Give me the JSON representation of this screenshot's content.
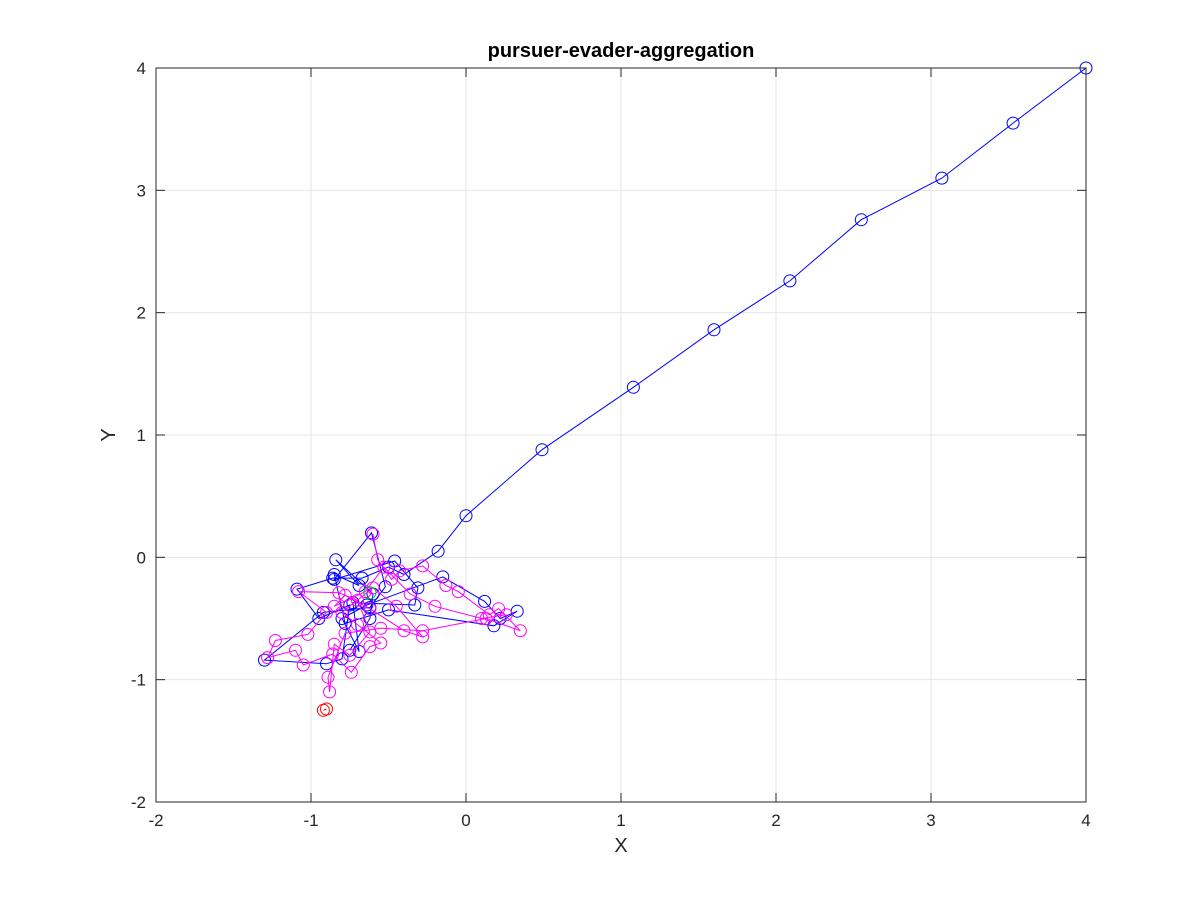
{
  "chart_data": {
    "type": "line",
    "title": "pursuer-evader-aggregation",
    "xlabel": "X",
    "ylabel": "Y",
    "xlim": [
      -2,
      4
    ],
    "ylim": [
      -2,
      4
    ],
    "xticks": [
      "-2",
      "-1",
      "0",
      "1",
      "2",
      "3",
      "4"
    ],
    "yticks": [
      "-2",
      "-1",
      "0",
      "1",
      "2",
      "3",
      "4"
    ],
    "grid": true,
    "marker": "circle",
    "series": [
      {
        "color": "#0000ff",
        "points": [
          [
            4.0,
            4.0
          ],
          [
            3.53,
            3.55
          ],
          [
            3.07,
            3.1
          ],
          [
            2.55,
            2.76
          ],
          [
            2.09,
            2.26
          ],
          [
            1.6,
            1.86
          ],
          [
            1.08,
            1.39
          ],
          [
            0.49,
            0.88
          ],
          [
            0.0,
            0.34
          ],
          [
            -0.18,
            0.05
          ],
          [
            -0.4,
            -0.14
          ],
          [
            -0.5,
            -0.08
          ],
          [
            -0.67,
            -0.17
          ],
          [
            -0.86,
            -0.17
          ],
          [
            -1.09,
            -0.26
          ],
          [
            -0.95,
            -0.5
          ],
          [
            -0.75,
            -0.39
          ],
          [
            -0.8,
            -0.83
          ],
          [
            -0.9,
            -0.87
          ],
          [
            -1.3,
            -0.84
          ],
          [
            -0.92,
            -0.45
          ],
          [
            -0.62,
            -0.41
          ],
          [
            -0.52,
            -0.24
          ],
          [
            -0.61,
            0.2
          ],
          [
            -0.85,
            -0.18
          ],
          [
            -0.46,
            -0.03
          ],
          [
            -0.31,
            -0.25
          ],
          [
            -0.33,
            -0.39
          ],
          [
            -0.73,
            -0.37
          ],
          [
            -0.69,
            -0.77
          ],
          [
            -0.8,
            -0.5
          ],
          [
            -0.64,
            -0.39
          ],
          [
            -0.15,
            -0.16
          ],
          [
            0.12,
            -0.36
          ],
          [
            0.22,
            -0.5
          ],
          [
            0.33,
            -0.44
          ],
          [
            0.18,
            -0.56
          ],
          [
            -0.5,
            -0.43
          ],
          [
            -0.78,
            -0.54
          ],
          [
            -0.85,
            -0.14
          ],
          [
            -0.69,
            -0.23
          ],
          [
            -0.84,
            -0.02
          ],
          [
            -0.6,
            -0.3
          ],
          [
            -0.62,
            -0.5
          ],
          [
            -0.75,
            -0.76
          ]
        ]
      },
      {
        "color": "#ff00ff",
        "points": [
          [
            -0.6,
            0.19
          ],
          [
            -0.57,
            -0.02
          ],
          [
            -0.48,
            -0.18
          ],
          [
            -0.43,
            -0.11
          ],
          [
            -0.28,
            -0.07
          ],
          [
            -0.13,
            -0.23
          ],
          [
            -0.05,
            -0.28
          ],
          [
            0.15,
            -0.47
          ],
          [
            0.21,
            -0.42
          ],
          [
            0.35,
            -0.6
          ],
          [
            0.13,
            -0.5
          ],
          [
            -0.28,
            -0.6
          ],
          [
            -0.55,
            -0.58
          ],
          [
            -0.78,
            -0.62
          ],
          [
            -0.89,
            -0.98
          ],
          [
            -0.88,
            -1.1
          ],
          [
            -0.85,
            -0.71
          ],
          [
            -0.75,
            -0.8
          ],
          [
            -0.62,
            -0.61
          ],
          [
            -0.7,
            -0.35
          ],
          [
            -0.82,
            -0.29
          ],
          [
            -1.08,
            -0.28
          ],
          [
            -0.9,
            -0.45
          ],
          [
            -1.02,
            -0.63
          ],
          [
            -1.23,
            -0.68
          ],
          [
            -1.28,
            -0.82
          ],
          [
            -1.1,
            -0.76
          ],
          [
            -1.05,
            -0.88
          ],
          [
            -0.86,
            -0.79
          ],
          [
            -0.74,
            -0.94
          ],
          [
            -0.62,
            -0.73
          ],
          [
            -0.55,
            -0.7
          ],
          [
            -0.7,
            -0.55
          ],
          [
            -0.8,
            -0.45
          ],
          [
            -0.6,
            -0.25
          ],
          [
            -0.45,
            -0.4
          ],
          [
            -0.28,
            -0.65
          ],
          [
            -0.4,
            -0.6
          ],
          [
            -0.62,
            -0.42
          ],
          [
            -0.78,
            -0.31
          ],
          [
            -0.85,
            -0.4
          ],
          [
            -0.65,
            -0.28
          ],
          [
            -0.53,
            -0.08
          ],
          [
            -0.36,
            -0.3
          ],
          [
            -0.2,
            -0.4
          ],
          [
            0.1,
            -0.5
          ],
          [
            0.26,
            -0.47
          ]
        ]
      },
      {
        "color": "#ff0000",
        "points": [
          [
            -0.92,
            -1.25
          ],
          [
            -0.9,
            -1.24
          ]
        ]
      },
      {
        "color": "#00cc00",
        "points": [
          [
            -0.62,
            -0.29
          ]
        ]
      }
    ]
  }
}
